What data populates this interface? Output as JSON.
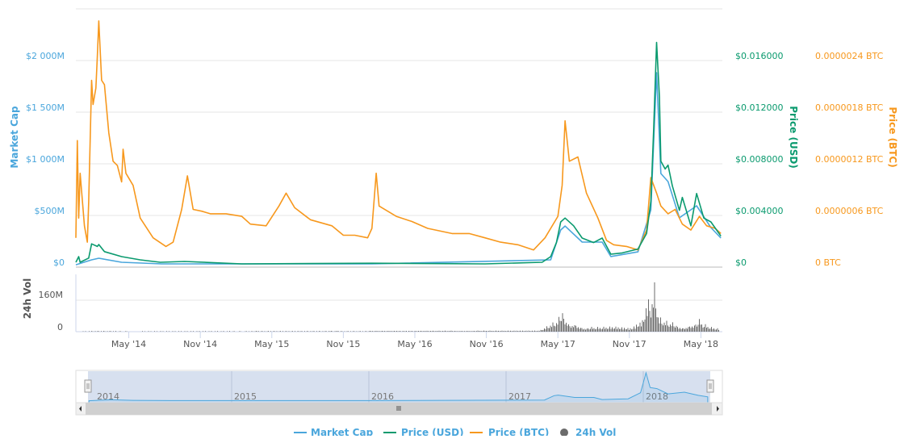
{
  "chart_data": {
    "type": "line",
    "x_unit": "decimal year",
    "xlim": [
      2013.96,
      2018.48
    ],
    "x_tick_labels": [
      "May '14",
      "Nov '14",
      "May '15",
      "Nov '15",
      "May '16",
      "Nov '16",
      "May '17",
      "Nov '17",
      "May '18"
    ],
    "x_tick_values": [
      2014.33,
      2014.83,
      2015.33,
      2015.83,
      2016.33,
      2016.83,
      2017.33,
      2017.83,
      2018.33
    ],
    "axes": {
      "market_cap": {
        "title": "Market Cap",
        "ylim": [
          0,
          2000
        ],
        "unit": "USD millions",
        "tick_labels": [
          "$0",
          "$500M",
          "$1 000M",
          "$1 500M",
          "$2 000M"
        ],
        "color": "#4aa6dc"
      },
      "price_usd": {
        "title": "Price (USD)",
        "ylim": [
          0,
          0.016
        ],
        "tick_labels": [
          "$0",
          "$0.004000",
          "$0.008000",
          "$0.012000",
          "$0.016000"
        ],
        "color": "#0a9a6e"
      },
      "price_btc": {
        "title": "Price (BTC)",
        "ylim": [
          0,
          2.4e-06
        ],
        "tick_labels": [
          "0 BTC",
          "0.0000006 BTC",
          "0.0000012 BTC",
          "0.0000018 BTC",
          "0.0000024 BTC"
        ],
        "color": "#f7981d"
      },
      "volume": {
        "title": "24h Vol",
        "ylim": [
          0,
          160
        ],
        "unit": "USD millions",
        "tick_labels": [
          "0",
          "160M"
        ],
        "color": "#6b6b6b"
      }
    },
    "series": [
      {
        "name": "Price (BTC)",
        "axis": "price_btc",
        "value_scale": 1e-07,
        "t": [
          2013.96,
          2013.97,
          2013.98,
          2013.99,
          2014.02,
          2014.04,
          2014.05,
          2014.07,
          2014.08,
          2014.1,
          2014.11,
          2014.12,
          2014.14,
          2014.16,
          2014.19,
          2014.22,
          2014.25,
          2014.28,
          2014.29,
          2014.31,
          2014.36,
          2014.41,
          2014.5,
          2014.59,
          2014.64,
          2014.7,
          2014.74,
          2014.78,
          2014.84,
          2014.9,
          2015.01,
          2015.12,
          2015.18,
          2015.29,
          2015.38,
          2015.43,
          2015.49,
          2015.6,
          2015.75,
          2015.83,
          2015.91,
          2016.0,
          2016.03,
          2016.06,
          2016.08,
          2016.2,
          2016.31,
          2016.42,
          2016.59,
          2016.71,
          2016.82,
          2016.93,
          2017.05,
          2017.16,
          2017.24,
          2017.33,
          2017.36,
          2017.38,
          2017.41,
          2017.47,
          2017.53,
          2017.61,
          2017.67,
          2017.72,
          2017.81,
          2017.89,
          2017.95,
          2017.98,
          2018.02,
          2018.05,
          2018.1,
          2018.15,
          2018.2,
          2018.26,
          2018.32,
          2018.37,
          2018.43,
          2018.47
        ],
        "values": [
          3.4,
          14.7,
          5.7,
          10.9,
          4.8,
          2.9,
          7.6,
          21.7,
          18.9,
          20.8,
          24.5,
          28.6,
          21.7,
          21.2,
          15.6,
          12.3,
          11.8,
          9.9,
          13.7,
          10.9,
          9.5,
          5.7,
          3.4,
          2.4,
          2.9,
          6.7,
          10.6,
          6.7,
          6.5,
          6.2,
          6.2,
          5.9,
          5.0,
          4.8,
          7.1,
          8.6,
          6.9,
          5.5,
          4.8,
          3.7,
          3.7,
          3.4,
          4.5,
          10.9,
          7.1,
          5.9,
          5.3,
          4.5,
          3.9,
          3.9,
          3.4,
          2.9,
          2.6,
          2.0,
          3.4,
          5.9,
          9.5,
          17.0,
          12.3,
          12.8,
          8.6,
          5.7,
          3.1,
          2.6,
          2.4,
          2.0,
          4.3,
          10.4,
          8.6,
          7.1,
          6.2,
          6.7,
          5.0,
          4.3,
          5.9,
          4.8,
          4.5,
          3.9
        ]
      },
      {
        "name": "Price (USD)",
        "axis": "price_usd",
        "t": [
          2013.96,
          2013.98,
          2013.99,
          2014.05,
          2014.07,
          2014.11,
          2014.12,
          2014.16,
          2014.28,
          2014.41,
          2014.55,
          2014.72,
          2015.12,
          2016.03,
          2016.82,
          2017.22,
          2017.28,
          2017.32,
          2017.35,
          2017.38,
          2017.44,
          2017.5,
          2017.58,
          2017.64,
          2017.7,
          2017.78,
          2017.89,
          2017.95,
          2017.98,
          2018.0,
          2018.02,
          2018.04,
          2018.05,
          2018.08,
          2018.1,
          2018.13,
          2018.18,
          2018.2,
          2018.26,
          2018.3,
          2018.35,
          2018.4,
          2018.47
        ],
        "values": [
          0.000375,
          0.00081,
          0.000375,
          0.0007,
          0.0018,
          0.0016,
          0.00175,
          0.0012,
          0.00081,
          0.00056,
          0.000375,
          0.00044,
          0.00025,
          0.0003,
          0.00025,
          0.000375,
          0.00081,
          0.0019,
          0.0035,
          0.0038,
          0.0032,
          0.00225,
          0.0019,
          0.00225,
          0.001,
          0.0011,
          0.0014,
          0.0026,
          0.0051,
          0.0107,
          0.0174,
          0.0132,
          0.0082,
          0.0076,
          0.0079,
          0.0063,
          0.0044,
          0.0054,
          0.0032,
          0.0057,
          0.0038,
          0.0035,
          0.0024
        ]
      },
      {
        "name": "Market Cap",
        "axis": "market_cap",
        "t": [
          2013.96,
          2014.07,
          2014.12,
          2014.28,
          2014.56,
          2016.03,
          2017.28,
          2017.35,
          2017.38,
          2017.5,
          2017.64,
          2017.7,
          2017.89,
          2017.98,
          2018.02,
          2018.05,
          2018.1,
          2018.18,
          2018.3,
          2018.4,
          2018.47
        ],
        "values": [
          23,
          70,
          86,
          47,
          31,
          31,
          70,
          359,
          398,
          242,
          242,
          102,
          148,
          555,
          1883,
          906,
          828,
          477,
          594,
          383,
          281
        ]
      },
      {
        "name": "24h Vol",
        "axis": "volume",
        "type": "bar",
        "t": [
          2013.96,
          2014.1,
          2014.4,
          2015.8,
          2017.2,
          2017.33,
          2017.36,
          2017.37,
          2017.38,
          2017.41,
          2017.44,
          2017.5,
          2017.61,
          2017.72,
          2017.84,
          2017.92,
          2017.95,
          2017.97,
          2017.98,
          2018.0,
          2018.02,
          2018.03,
          2018.06,
          2018.1,
          2018.15,
          2018.2,
          2018.29,
          2018.32,
          2018.34,
          2018.4,
          2018.46
        ],
        "values": [
          2,
          4,
          3,
          4,
          6,
          66,
          135,
          107,
          86,
          45,
          53,
          25,
          25,
          29,
          20,
          66,
          168,
          189,
          127,
          291,
          148,
          86,
          66,
          53,
          45,
          25,
          53,
          66,
          45,
          25,
          16
        ]
      }
    ],
    "navigator": {
      "year_labels": [
        "2014",
        "2015",
        "2016",
        "2017",
        "2018"
      ],
      "series": "Market Cap"
    },
    "legend": {
      "placement": "bottom-center",
      "items": [
        {
          "label": "Market Cap",
          "color": "#4aa6dc",
          "symbol": "line"
        },
        {
          "label": "Price (USD)",
          "color": "#0a9a6e",
          "symbol": "line"
        },
        {
          "label": "Price (BTC)",
          "color": "#f7981d",
          "symbol": "line"
        },
        {
          "label": "24h Vol",
          "color": "#6b6b6b",
          "symbol": "circle"
        }
      ]
    },
    "grid": true
  }
}
